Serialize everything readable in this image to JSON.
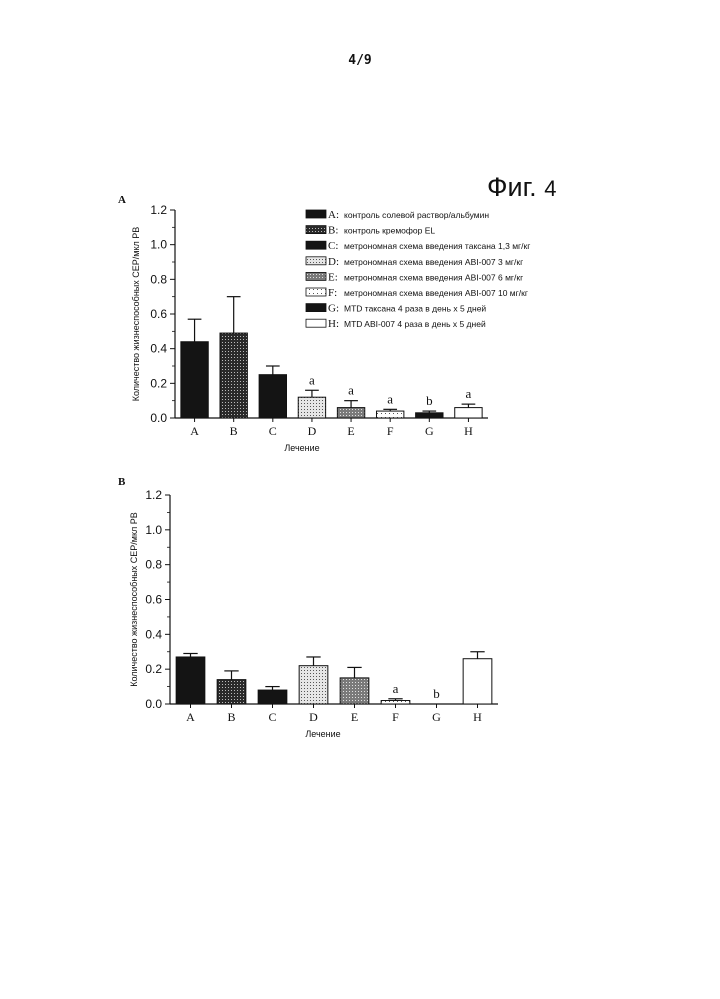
{
  "page_number": "4/9",
  "figure": {
    "word": "Фиг",
    "sep": ".",
    "number": "4"
  },
  "legend": [
    {
      "letter": "A:",
      "text": "контроль солевой раствор/альбумин",
      "pattern": "solid"
    },
    {
      "letter": "B:",
      "text": "контроль кремофор EL",
      "pattern": "dots-dark"
    },
    {
      "letter": "C:",
      "text": "метрономная схема введения таксана 1,3 мг/кг",
      "pattern": "solid"
    },
    {
      "letter": "D:",
      "text": "метрономная схема введения ABI-007 3 мг/кг",
      "pattern": "dots-light"
    },
    {
      "letter": "E:",
      "text": "метрономная схема введения ABI-007 6 мг/кг",
      "pattern": "dots-mid"
    },
    {
      "letter": "F:",
      "text": "метрономная схема введения ABI-007 10 мг/кг",
      "pattern": "dots-sparse"
    },
    {
      "letter": "G:",
      "text": "MTD таксана 4 раза в день x 5 дней",
      "pattern": "solid"
    },
    {
      "letter": "H:",
      "text": "MTD ABI-007 4 раза в день x 5 дней",
      "pattern": "white"
    }
  ],
  "chart_data": [
    {
      "panel": "A",
      "type": "bar",
      "categories": [
        "A",
        "B",
        "C",
        "D",
        "E",
        "F",
        "G",
        "H"
      ],
      "values": [
        0.44,
        0.49,
        0.25,
        0.12,
        0.06,
        0.04,
        0.03,
        0.06
      ],
      "errors": [
        0.13,
        0.21,
        0.05,
        0.04,
        0.04,
        0.01,
        0.01,
        0.02
      ],
      "annotations": [
        "",
        "",
        "",
        "a",
        "a",
        "a",
        "b",
        "a"
      ],
      "ylabel": "Количество жизнеспособных CEP/мкл PB",
      "xlabel": "Лечение",
      "ylim": [
        0,
        1.2
      ],
      "yticks": [
        "0.0",
        "0.2",
        "0.4",
        "0.6",
        "0.8",
        "1.0",
        "1.2"
      ],
      "legend_position": "top-right"
    },
    {
      "panel": "B",
      "type": "bar",
      "categories": [
        "A",
        "B",
        "C",
        "D",
        "E",
        "F",
        "G",
        "H"
      ],
      "values": [
        0.27,
        0.14,
        0.08,
        0.22,
        0.15,
        0.02,
        0.0,
        0.26
      ],
      "errors": [
        0.02,
        0.05,
        0.02,
        0.05,
        0.06,
        0.01,
        0.0,
        0.04
      ],
      "annotations": [
        "",
        "",
        "",
        "",
        "",
        "a",
        "b",
        ""
      ],
      "ylabel": "Количество жизнеспособных CEP/мкл PB",
      "xlabel": "Лечение",
      "ylim": [
        0,
        1.2
      ],
      "yticks": [
        "0.0",
        "0.2",
        "0.4",
        "0.6",
        "0.8",
        "1.0",
        "1.2"
      ]
    }
  ]
}
